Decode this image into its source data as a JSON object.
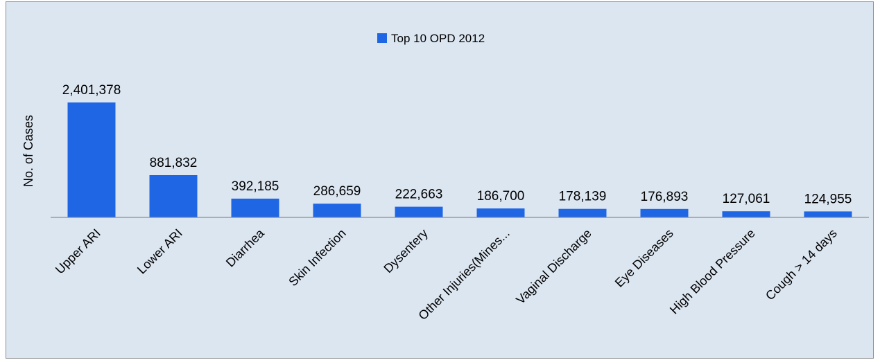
{
  "chart_data": {
    "type": "bar",
    "title": "",
    "xlabel": "",
    "ylabel": "No. of Cases",
    "legend": {
      "position": "top",
      "entries": [
        "Top 10 OPD 2012"
      ]
    },
    "grid": false,
    "categories": [
      "Upper ARI",
      "Lower ARI",
      "Diarrhea",
      "Skin Infection",
      "Dysentery",
      "Other Injuries(Mines...",
      "Vaginal Discharge",
      "Eye Diseases",
      "High Blood Pressure",
      "Cough > 14 days"
    ],
    "series": [
      {
        "name": "Top 10 OPD 2012",
        "color": "#1f66e5",
        "values": [
          2401378,
          881832,
          392185,
          286659,
          222663,
          186700,
          178139,
          176893,
          127061,
          124955
        ],
        "data_labels": [
          "2,401,378",
          "881,832",
          "392,185",
          "286,659",
          "222,663",
          "186,700",
          "178,139",
          "176,893",
          "127,061",
          "124,955"
        ]
      }
    ],
    "ylim": [
      0,
      2401378
    ]
  },
  "colors": {
    "plot_background": "#dce6f1",
    "axis_line": "#8c8c8c",
    "bar": "#1f66e5"
  }
}
